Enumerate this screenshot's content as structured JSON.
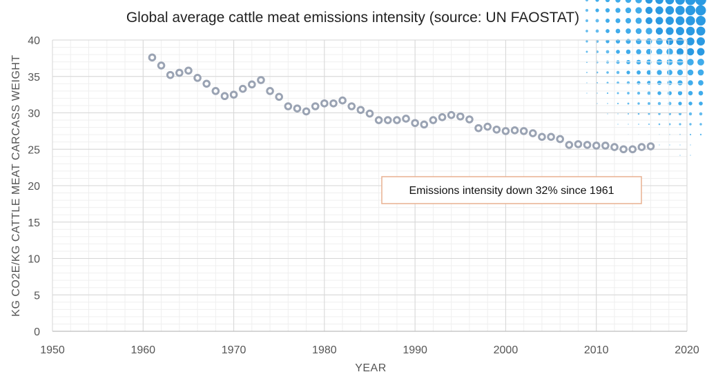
{
  "chart_data": {
    "type": "scatter",
    "title": "Global average cattle meat emissions intensity (source: UN FAOSTAT)",
    "xlabel": "YEAR",
    "ylabel": "KG CO2E/KG CATTLE MEAT CARCASS WEIGHT",
    "xlim": [
      1950,
      2020
    ],
    "ylim": [
      0,
      40
    ],
    "xticks": [
      1950,
      1960,
      1970,
      1980,
      1990,
      2000,
      2010,
      2020
    ],
    "yticks": [
      0,
      5,
      10,
      15,
      20,
      25,
      30,
      35,
      40
    ],
    "grid": true,
    "marker_color": "#9aa3b3",
    "series": [
      {
        "x": [
          1961,
          1962,
          1963,
          1964,
          1965,
          1966,
          1967,
          1968,
          1969,
          1970,
          1971,
          1972,
          1973,
          1974,
          1975,
          1976,
          1977,
          1978,
          1979,
          1980,
          1981,
          1982,
          1983,
          1984,
          1985,
          1986,
          1987,
          1988,
          1989,
          1990,
          1991,
          1992,
          1993,
          1994,
          1995,
          1996,
          1997,
          1998,
          1999,
          2000,
          2001,
          2002,
          2003,
          2004,
          2005,
          2006,
          2007,
          2008,
          2009,
          2010,
          2011,
          2012,
          2013,
          2014,
          2015,
          2016
        ],
        "y": [
          37.6,
          36.5,
          35.2,
          35.5,
          35.8,
          34.8,
          34.0,
          33.0,
          32.3,
          32.5,
          33.3,
          33.9,
          34.5,
          33.0,
          32.2,
          30.9,
          30.6,
          30.2,
          30.9,
          31.3,
          31.3,
          31.7,
          30.9,
          30.4,
          29.9,
          29.0,
          29.0,
          29.0,
          29.2,
          28.6,
          28.4,
          29.0,
          29.4,
          29.7,
          29.5,
          29.1,
          27.9,
          28.1,
          27.7,
          27.5,
          27.6,
          27.5,
          27.2,
          26.7,
          26.7,
          26.4,
          25.6,
          25.7,
          25.6,
          25.5,
          25.5,
          25.3,
          25.0,
          25.0,
          25.3,
          25.4
        ]
      }
    ],
    "annotation": "Emissions intensity down 32% since 1961"
  }
}
